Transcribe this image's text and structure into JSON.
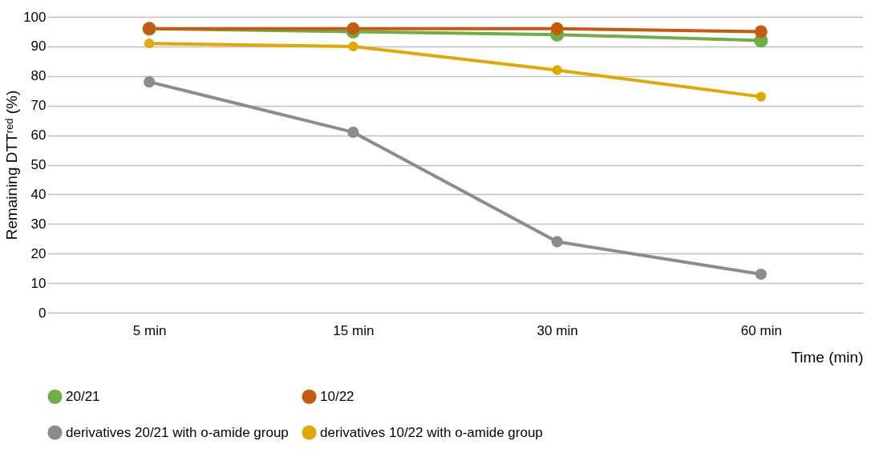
{
  "chart_data": {
    "type": "line",
    "xlabel": "Time (min)",
    "ylabel": "Remaining DTTʳᵉᵈ (%)",
    "categories": [
      "5 min",
      "15 min",
      "30 min",
      "60 min"
    ],
    "series": [
      {
        "name": "20/21",
        "color": "#70ad47",
        "values": [
          96,
          95,
          94,
          92
        ]
      },
      {
        "name": "10/22",
        "color": "#c55a11",
        "values": [
          96,
          96,
          96,
          95
        ]
      },
      {
        "name": "derivatives 20/21 with o-amide group",
        "color": "#8c8c8c",
        "values": [
          78,
          61,
          24,
          13
        ]
      },
      {
        "name": "derivatives 10/22 with o-amide group",
        "color": "#e0a800",
        "values": [
          91,
          90,
          82,
          73
        ]
      }
    ],
    "ylim": [
      0,
      100
    ],
    "yticks": [
      0,
      10,
      20,
      30,
      40,
      50,
      60,
      70,
      80,
      90,
      100
    ],
    "grid": "y",
    "legend": "bottom",
    "marker": "circle",
    "line_style": "solid"
  }
}
